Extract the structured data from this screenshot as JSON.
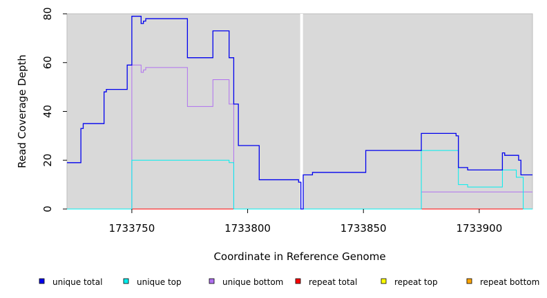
{
  "chart_data": {
    "type": "line",
    "title": "",
    "xlabel": "Coordinate in Reference Genome",
    "ylabel": "Read Coverage Depth",
    "xlim": [
      1733722,
      1733923
    ],
    "ylim": [
      0,
      80
    ],
    "x_ticks": [
      1733750,
      1733800,
      1733850,
      1733900
    ],
    "x_tick_labels": [
      "1733750",
      "1733800",
      "1733850",
      "1733900"
    ],
    "y_ticks": [
      0,
      20,
      40,
      60,
      80
    ],
    "y_tick_labels": [
      "0",
      "20",
      "40",
      "60",
      "80"
    ],
    "grid": false,
    "background_color": "#d9d9d9",
    "gap_x": 1733823,
    "legend_position": "bottom",
    "series": [
      {
        "name": "unique total",
        "color": "#0000ee",
        "x": [
          1733722,
          1733728,
          1733728,
          1733729,
          1733729,
          1733738,
          1733738,
          1733739,
          1733739,
          1733748,
          1733748,
          1733750,
          1733750,
          1733754,
          1733754,
          1733755,
          1733755,
          1733756,
          1733756,
          1733774,
          1733774,
          1733785,
          1733785,
          1733792,
          1733792,
          1733794,
          1733794,
          1733796,
          1733796,
          1733805,
          1733805,
          1733822,
          1733822,
          1733823,
          1733823,
          1733824,
          1733824,
          1733828,
          1733828,
          1733851,
          1733851,
          1733875,
          1733875,
          1733890,
          1733890,
          1733891,
          1733891,
          1733895,
          1733895,
          1733910,
          1733910,
          1733911,
          1733911,
          1733917,
          1733917,
          1733918,
          1733918,
          1733923
        ],
        "y": [
          19,
          19,
          33,
          33,
          35,
          35,
          48,
          48,
          49,
          49,
          59,
          59,
          79,
          79,
          76,
          76,
          77,
          77,
          78,
          78,
          62,
          62,
          73,
          73,
          62,
          62,
          43,
          43,
          26,
          26,
          12,
          12,
          11,
          11,
          0,
          0,
          14,
          14,
          15,
          15,
          24,
          24,
          31,
          31,
          30,
          30,
          17,
          17,
          16,
          16,
          23,
          23,
          22,
          22,
          20,
          20,
          14,
          14
        ]
      },
      {
        "name": "unique top",
        "color": "#00eeee",
        "x": [
          1733722,
          1733750,
          1733750,
          1733792,
          1733792,
          1733794,
          1733794,
          1733823,
          1733823,
          1733824,
          1733824,
          1733875,
          1733875,
          1733891,
          1733891,
          1733895,
          1733895,
          1733910,
          1733910,
          1733916,
          1733916,
          1733919,
          1733919,
          1733923
        ],
        "y": [
          0,
          0,
          20,
          20,
          19,
          19,
          0,
          0,
          0,
          0,
          0,
          0,
          24,
          24,
          10,
          10,
          9,
          9,
          16,
          16,
          13,
          13,
          0,
          0
        ]
      },
      {
        "name": "unique bottom",
        "color": "#b070f0",
        "x": [
          1733722,
          1733748,
          1733748,
          1733750,
          1733750,
          1733754,
          1733754,
          1733755,
          1733755,
          1733756,
          1733756,
          1733774,
          1733774,
          1733785,
          1733785,
          1733792,
          1733792,
          1733794,
          1733794,
          1733823,
          1733823,
          1733824,
          1733824,
          1733875,
          1733875,
          1733923
        ],
        "y": [
          0,
          0,
          0,
          0,
          59,
          59,
          56,
          56,
          57,
          57,
          58,
          58,
          42,
          42,
          53,
          53,
          43,
          43,
          0,
          0,
          0,
          0,
          0,
          0,
          7,
          7
        ]
      },
      {
        "name": "repeat total",
        "color": "#ff0000",
        "x": [
          1733722,
          1733923
        ],
        "y": [
          0,
          0
        ]
      },
      {
        "name": "repeat top",
        "color": "#ffff00",
        "x": [
          1733722,
          1733923
        ],
        "y": [
          0,
          0
        ]
      },
      {
        "name": "repeat bottom",
        "color": "#ffa500",
        "x": [
          1733722,
          1733923
        ],
        "y": [
          0,
          0
        ]
      }
    ]
  }
}
